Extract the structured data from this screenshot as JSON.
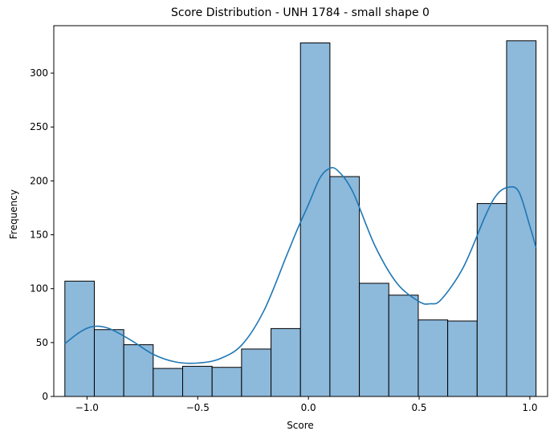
{
  "chart_data": {
    "type": "bar",
    "title": "Score Distribution - UNH 1784 - small shape 0",
    "xlabel": "Score",
    "ylabel": "Frequency",
    "xlim": [
      -1.15,
      1.08
    ],
    "ylim": [
      0,
      344
    ],
    "x_ticks": [
      -1.0,
      -0.5,
      0.0,
      0.5,
      1.0
    ],
    "x_tick_labels": [
      "−1.0",
      "−0.5",
      "0.0",
      "0.5",
      "1.0"
    ],
    "y_ticks": [
      0,
      50,
      100,
      150,
      200,
      250,
      300
    ],
    "y_tick_labels": [
      "0",
      "50",
      "100",
      "150",
      "200",
      "250",
      "300"
    ],
    "bin_edges": [
      -1.1,
      -0.967,
      -0.834,
      -0.701,
      -0.568,
      -0.435,
      -0.302,
      -0.169,
      -0.036,
      0.097,
      0.23,
      0.363,
      0.496,
      0.629,
      0.762,
      0.895,
      1.028
    ],
    "values": [
      107,
      62,
      48,
      26,
      28,
      27,
      44,
      63,
      328,
      204,
      105,
      94,
      71,
      70,
      179,
      330
    ],
    "kde": {
      "x": [
        -1.1,
        -1.03,
        -0.97,
        -0.9,
        -0.8,
        -0.7,
        -0.6,
        -0.5,
        -0.4,
        -0.3,
        -0.2,
        -0.1,
        -0.05,
        0.0,
        0.05,
        0.09,
        0.13,
        0.2,
        0.3,
        0.4,
        0.5,
        0.55,
        0.6,
        0.7,
        0.8,
        0.85,
        0.9,
        0.95,
        1.0,
        1.028
      ],
      "y": [
        49,
        60,
        65,
        63,
        52,
        39,
        32,
        31,
        35,
        48,
        80,
        130,
        155,
        178,
        202,
        211,
        210,
        190,
        140,
        105,
        88,
        86,
        90,
        120,
        168,
        187,
        194,
        190,
        158,
        138
      ]
    },
    "bar_color": "#8db9db",
    "bar_edge_color": "#000000",
    "line_color": "#1f77b4",
    "grid": false,
    "legend": "none"
  }
}
